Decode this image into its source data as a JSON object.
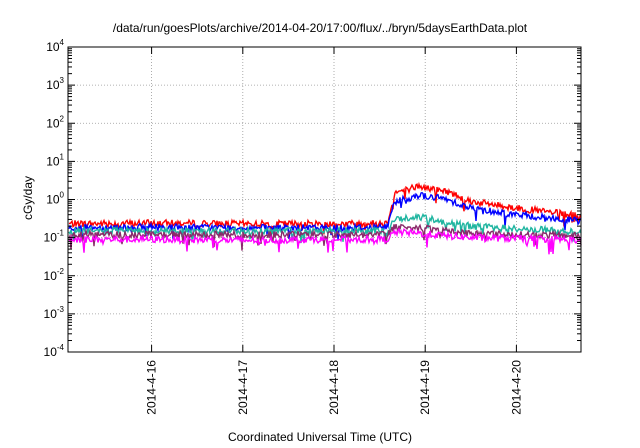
{
  "chart_data": {
    "type": "line",
    "title": "/data/run/goesPlots/archive/2014-04-20/17:00/flux/../bryn/5daysEarthData.plot",
    "xlabel": "Coordinated Universal Time (UTC)",
    "ylabel": "cGy/day",
    "y_scale": "log",
    "ylim": [
      0.0001,
      10000
    ],
    "xlim": [
      "2014-04-15T02:00",
      "2014-04-20T17:00"
    ],
    "x_ticks": [
      "2014-4-16",
      "2014-4-17",
      "2014-4-18",
      "2014-4-19",
      "2014-4-20"
    ],
    "y_ticks": [
      {
        "mantissa": "10",
        "exp": "-4"
      },
      {
        "mantissa": "10",
        "exp": "-3"
      },
      {
        "mantissa": "10",
        "exp": "-2"
      },
      {
        "mantissa": "10",
        "exp": "-1"
      },
      {
        "mantissa": "10",
        "exp": "0"
      },
      {
        "mantissa": "10",
        "exp": "1"
      },
      {
        "mantissa": "10",
        "exp": "2"
      },
      {
        "mantissa": "10",
        "exp": "3"
      },
      {
        "mantissa": "10",
        "exp": "4"
      }
    ],
    "grid": true,
    "legend": "none",
    "series": [
      {
        "color": "#ff0000",
        "x": [
          "2014-04-15T02:00",
          "2014-04-16T00:00",
          "2014-04-17T00:00",
          "2014-04-18T00:00",
          "2014-04-18T14:00",
          "2014-04-18T16:00",
          "2014-04-18T22:00",
          "2014-04-19T06:00",
          "2014-04-19T12:00",
          "2014-04-20T00:00",
          "2014-04-20T12:00",
          "2014-04-20T17:00"
        ],
        "y": [
          0.23,
          0.24,
          0.23,
          0.23,
          0.24,
          1.5,
          2.2,
          1.6,
          0.9,
          0.6,
          0.42,
          0.36
        ]
      },
      {
        "color": "#0000ff",
        "x": [
          "2014-04-15T02:00",
          "2014-04-16T00:00",
          "2014-04-17T00:00",
          "2014-04-18T00:00",
          "2014-04-18T14:00",
          "2014-04-18T16:00",
          "2014-04-18T22:00",
          "2014-04-19T06:00",
          "2014-04-19T12:00",
          "2014-04-20T00:00",
          "2014-04-20T12:00",
          "2014-04-20T17:00"
        ],
        "y": [
          0.18,
          0.19,
          0.18,
          0.18,
          0.19,
          0.9,
          1.3,
          1.0,
          0.6,
          0.4,
          0.3,
          0.27
        ]
      },
      {
        "color": "#1fb5a0",
        "x": [
          "2014-04-15T02:00",
          "2014-04-16T00:00",
          "2014-04-17T00:00",
          "2014-04-18T00:00",
          "2014-04-18T14:00",
          "2014-04-18T16:00",
          "2014-04-18T22:00",
          "2014-04-19T06:00",
          "2014-04-19T12:00",
          "2014-04-20T00:00",
          "2014-04-20T12:00",
          "2014-04-20T17:00"
        ],
        "y": [
          0.15,
          0.15,
          0.15,
          0.15,
          0.15,
          0.3,
          0.35,
          0.25,
          0.2,
          0.17,
          0.15,
          0.14
        ]
      },
      {
        "color": "#8a2a6a",
        "x": [
          "2014-04-15T02:00",
          "2014-04-16T00:00",
          "2014-04-17T00:00",
          "2014-04-18T00:00",
          "2014-04-18T14:00",
          "2014-04-18T16:00",
          "2014-04-18T22:00",
          "2014-04-19T06:00",
          "2014-04-19T12:00",
          "2014-04-20T00:00",
          "2014-04-20T12:00",
          "2014-04-20T17:00"
        ],
        "y": [
          0.12,
          0.12,
          0.12,
          0.12,
          0.12,
          0.2,
          0.18,
          0.15,
          0.13,
          0.12,
          0.115,
          0.11
        ]
      },
      {
        "color": "#ff00ff",
        "x": [
          "2014-04-15T02:00",
          "2014-04-16T00:00",
          "2014-04-17T00:00",
          "2014-04-18T00:00",
          "2014-04-18T14:00",
          "2014-04-18T16:00",
          "2014-04-18T22:00",
          "2014-04-19T06:00",
          "2014-04-19T12:00",
          "2014-04-20T00:00",
          "2014-04-20T12:00",
          "2014-04-20T17:00"
        ],
        "y": [
          0.09,
          0.09,
          0.085,
          0.09,
          0.09,
          0.14,
          0.13,
          0.11,
          0.1,
          0.095,
          0.09,
          0.085
        ]
      }
    ]
  }
}
